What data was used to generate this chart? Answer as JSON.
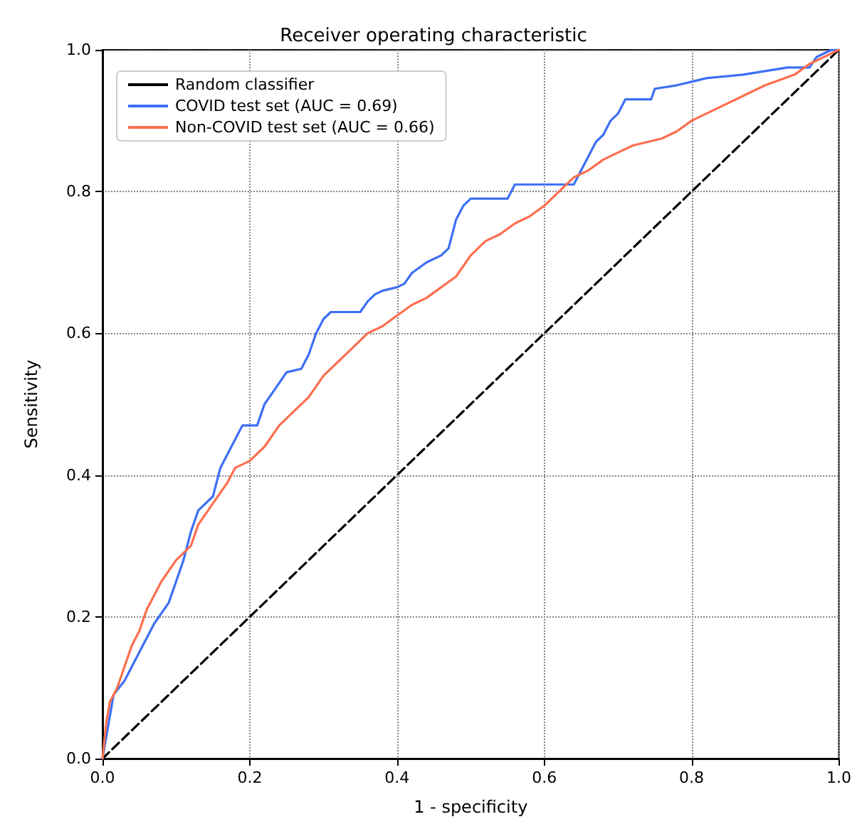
{
  "chart_data": {
    "type": "line",
    "title": "Receiver operating characteristic",
    "xlabel": "1 - specificity",
    "ylabel": "Sensitivity",
    "xlim": [
      0,
      1
    ],
    "ylim": [
      0,
      1
    ],
    "xticks": [
      {
        "value": 0,
        "label": "0.0"
      },
      0.2,
      0.4,
      0.6,
      0.8,
      {
        "value": 1,
        "label": "1.0"
      }
    ],
    "yticks": [
      {
        "value": 0,
        "label": "0.0"
      },
      0.2,
      0.4,
      0.6,
      0.8,
      {
        "value": 1,
        "label": "1.0"
      }
    ],
    "grid": true,
    "legend": "top left",
    "marker": "none",
    "series": [
      {
        "name": "Random classifier",
        "color": "#000000",
        "line_style": "dashed",
        "x": [
          0,
          1
        ],
        "values": [
          0,
          1
        ]
      },
      {
        "name": "COVID test set (AUC = 0.69)",
        "color": "#3d6ff5",
        "line_style": "solid",
        "x": [
          0,
          0.01,
          0.015,
          0.03,
          0.05,
          0.07,
          0.09,
          0.1,
          0.11,
          0.12,
          0.13,
          0.15,
          0.16,
          0.17,
          0.18,
          0.19,
          0.21,
          0.22,
          0.24,
          0.25,
          0.27,
          0.28,
          0.29,
          0.3,
          0.31,
          0.35,
          0.36,
          0.37,
          0.38,
          0.4,
          0.41,
          0.42,
          0.44,
          0.46,
          0.47,
          0.48,
          0.49,
          0.5,
          0.55,
          0.56,
          0.64,
          0.65,
          0.66,
          0.67,
          0.68,
          0.69,
          0.7,
          0.71,
          0.745,
          0.75,
          0.78,
          0.8,
          0.82,
          0.87,
          0.93,
          0.96,
          0.97,
          0.99,
          1
        ],
        "values": [
          0,
          0.06,
          0.09,
          0.11,
          0.15,
          0.19,
          0.22,
          0.25,
          0.28,
          0.32,
          0.35,
          0.37,
          0.41,
          0.43,
          0.45,
          0.47,
          0.47,
          0.5,
          0.53,
          0.545,
          0.55,
          0.57,
          0.6,
          0.62,
          0.63,
          0.63,
          0.645,
          0.655,
          0.66,
          0.665,
          0.67,
          0.685,
          0.7,
          0.71,
          0.72,
          0.76,
          0.78,
          0.79,
          0.79,
          0.81,
          0.81,
          0.83,
          0.85,
          0.87,
          0.88,
          0.9,
          0.91,
          0.93,
          0.93,
          0.945,
          0.95,
          0.955,
          0.96,
          0.965,
          0.975,
          0.975,
          0.99,
          1,
          1
        ]
      },
      {
        "name": "Non-COVID test set (AUC = 0.66)",
        "color": "#fc6f4f",
        "line_style": "solid",
        "x": [
          0,
          0.005,
          0.01,
          0.02,
          0.03,
          0.04,
          0.05,
          0.06,
          0.07,
          0.08,
          0.1,
          0.12,
          0.13,
          0.15,
          0.17,
          0.18,
          0.2,
          0.22,
          0.24,
          0.26,
          0.28,
          0.3,
          0.32,
          0.34,
          0.36,
          0.38,
          0.4,
          0.42,
          0.44,
          0.46,
          0.48,
          0.5,
          0.52,
          0.54,
          0.56,
          0.58,
          0.6,
          0.62,
          0.64,
          0.66,
          0.68,
          0.7,
          0.72,
          0.74,
          0.76,
          0.78,
          0.8,
          0.84,
          0.88,
          0.9,
          0.94,
          0.96,
          0.98,
          1
        ],
        "values": [
          0,
          0.05,
          0.08,
          0.1,
          0.13,
          0.16,
          0.18,
          0.21,
          0.23,
          0.25,
          0.28,
          0.3,
          0.33,
          0.36,
          0.39,
          0.41,
          0.42,
          0.44,
          0.47,
          0.49,
          0.51,
          0.54,
          0.56,
          0.58,
          0.6,
          0.61,
          0.625,
          0.64,
          0.65,
          0.665,
          0.68,
          0.71,
          0.73,
          0.74,
          0.755,
          0.765,
          0.78,
          0.8,
          0.82,
          0.83,
          0.845,
          0.855,
          0.865,
          0.87,
          0.875,
          0.885,
          0.9,
          0.92,
          0.94,
          0.95,
          0.965,
          0.98,
          0.99,
          1
        ]
      }
    ]
  }
}
